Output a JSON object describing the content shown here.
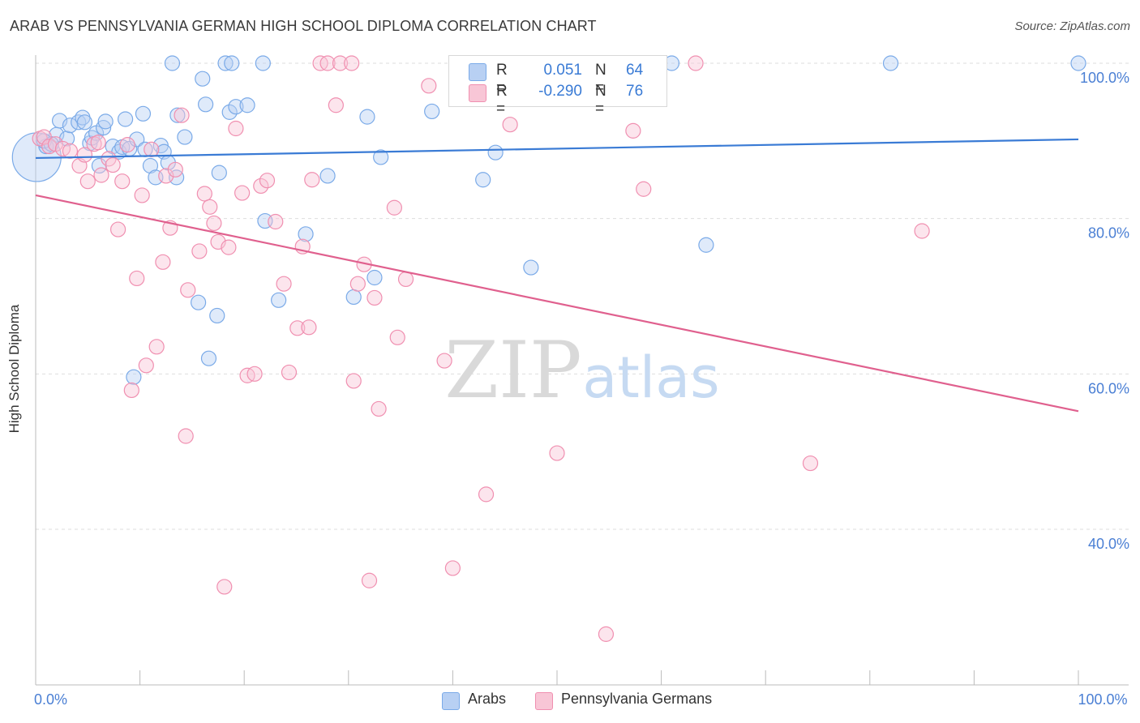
{
  "title": "ARAB VS PENNSYLVANIA GERMAN HIGH SCHOOL DIPLOMA CORRELATION CHART",
  "source": "Source: ZipAtlas.com",
  "watermark": {
    "zip": "ZIP",
    "atlas": "atlas"
  },
  "legend": {
    "r_label": "R =",
    "n_label": "N =",
    "rows": [
      {
        "name": "Arabs",
        "r": "0.051",
        "n": "64",
        "color": "#7aaae8",
        "fill": "#b8d0f3"
      },
      {
        "name": "Pennsylvania Germans",
        "r": "-0.290",
        "n": "76",
        "color": "#f08fb0",
        "fill": "#f8c6d6"
      }
    ]
  },
  "colors": {
    "blue": "#3a7bd5",
    "pink": "#e0608e",
    "tick_text": "#4a7fd4",
    "grid": "#dddddd"
  },
  "chart_data": {
    "type": "scatter",
    "title": "ARAB VS PENNSYLVANIA GERMAN HIGH SCHOOL DIPLOMA CORRELATION CHART",
    "xlabel": "",
    "ylabel": "High School Diploma",
    "xlim": [
      0,
      100
    ],
    "ylim": [
      20,
      102
    ],
    "x_tick_labels": [
      {
        "value": 0,
        "label": "0.0%"
      },
      {
        "value": 100,
        "label": "100.0%"
      }
    ],
    "y_tick_labels": [
      {
        "value": 100,
        "label": "100.0%"
      },
      {
        "value": 80,
        "label": "80.0%"
      },
      {
        "value": 60,
        "label": "60.0%"
      },
      {
        "value": 40,
        "label": "40.0%"
      }
    ],
    "grid": true,
    "legend_position": "top-center",
    "series": [
      {
        "name": "Arabs",
        "color": "#7aaae8",
        "trend": {
          "x": [
            0,
            100
          ],
          "y": [
            87.8,
            90.2
          ]
        },
        "points": [
          [
            0.1,
            87.9,
            30
          ],
          [
            1.0,
            89.3,
            9
          ],
          [
            2.0,
            90.8,
            9
          ],
          [
            2.3,
            92.6,
            9
          ],
          [
            3.0,
            90.3,
            9
          ],
          [
            3.3,
            92.0,
            9
          ],
          [
            4.1,
            92.4,
            9
          ],
          [
            4.5,
            93.0,
            9
          ],
          [
            4.7,
            92.4,
            9
          ],
          [
            5.2,
            89.7,
            9
          ],
          [
            5.4,
            90.4,
            9
          ],
          [
            5.8,
            91.0,
            9
          ],
          [
            6.1,
            86.8,
            9
          ],
          [
            6.5,
            91.7,
            9
          ],
          [
            6.7,
            92.5,
            9
          ],
          [
            7.4,
            89.3,
            9
          ],
          [
            8.0,
            88.6,
            9
          ],
          [
            8.3,
            89.2,
            9
          ],
          [
            8.6,
            92.8,
            9
          ],
          [
            9.0,
            89.0,
            9
          ],
          [
            9.7,
            90.2,
            9
          ],
          [
            10.3,
            93.5,
            9
          ],
          [
            10.5,
            88.9,
            9
          ],
          [
            11.0,
            86.8,
            9
          ],
          [
            11.5,
            85.3,
            9
          ],
          [
            12.0,
            89.4,
            9
          ],
          [
            12.3,
            88.6,
            9
          ],
          [
            12.7,
            87.2,
            9
          ],
          [
            13.1,
            100.0,
            9
          ],
          [
            13.5,
            85.3,
            9
          ],
          [
            13.6,
            93.3,
            9
          ],
          [
            14.3,
            90.5,
            9
          ],
          [
            15.6,
            69.2,
            9
          ],
          [
            16.0,
            98.0,
            9
          ],
          [
            16.3,
            94.7,
            9
          ],
          [
            16.6,
            62.0,
            9
          ],
          [
            17.4,
            67.5,
            9
          ],
          [
            17.6,
            85.9,
            9
          ],
          [
            18.2,
            100.0,
            9
          ],
          [
            18.6,
            93.7,
            9
          ],
          [
            18.8,
            100.0,
            9
          ],
          [
            19.2,
            94.4,
            9
          ],
          [
            20.3,
            94.6,
            9
          ],
          [
            21.8,
            100.0,
            9
          ],
          [
            22.0,
            79.7,
            9
          ],
          [
            23.3,
            69.5,
            9
          ],
          [
            25.9,
            78.0,
            9
          ],
          [
            28.0,
            85.5,
            9
          ],
          [
            30.5,
            69.9,
            9
          ],
          [
            31.8,
            93.1,
            9
          ],
          [
            32.5,
            72.4,
            9
          ],
          [
            33.1,
            87.9,
            9
          ],
          [
            38.0,
            93.8,
            9
          ],
          [
            42.9,
            85.0,
            9
          ],
          [
            44.1,
            88.5,
            9
          ],
          [
            46.8,
            100.0,
            9
          ],
          [
            47.5,
            73.7,
            9
          ],
          [
            61.0,
            100.0,
            9
          ],
          [
            64.3,
            76.6,
            9
          ],
          [
            82.0,
            100.0,
            9
          ],
          [
            100.0,
            100.0,
            9
          ],
          [
            9.4,
            59.6,
            9
          ],
          [
            0.8,
            90.0,
            9
          ],
          [
            1.5,
            89.6,
            9
          ]
        ]
      },
      {
        "name": "Pennsylvania Germans",
        "color": "#f08fb0",
        "trend": {
          "x": [
            0,
            100
          ],
          "y": [
            83.0,
            55.2
          ]
        },
        "points": [
          [
            0.4,
            90.3,
            9
          ],
          [
            0.8,
            90.5,
            9
          ],
          [
            1.3,
            89.3,
            9
          ],
          [
            1.9,
            89.6,
            9
          ],
          [
            2.6,
            89.0,
            9
          ],
          [
            3.3,
            88.7,
            9
          ],
          [
            4.2,
            86.8,
            9
          ],
          [
            4.7,
            88.2,
            9
          ],
          [
            5.0,
            84.8,
            9
          ],
          [
            5.6,
            89.6,
            9
          ],
          [
            6.0,
            89.8,
            9
          ],
          [
            6.3,
            85.6,
            9
          ],
          [
            7.0,
            87.7,
            9
          ],
          [
            7.4,
            86.9,
            9
          ],
          [
            7.9,
            78.6,
            9
          ],
          [
            8.3,
            84.8,
            9
          ],
          [
            8.8,
            89.5,
            9
          ],
          [
            9.2,
            57.9,
            9
          ],
          [
            9.7,
            72.3,
            9
          ],
          [
            10.2,
            83.0,
            9
          ],
          [
            10.6,
            61.1,
            9
          ],
          [
            11.1,
            88.9,
            9
          ],
          [
            11.6,
            63.5,
            9
          ],
          [
            12.2,
            74.4,
            9
          ],
          [
            12.5,
            85.5,
            9
          ],
          [
            12.9,
            78.8,
            9
          ],
          [
            13.4,
            86.3,
            9
          ],
          [
            14.0,
            93.3,
            9
          ],
          [
            14.4,
            52.0,
            9
          ],
          [
            14.6,
            70.8,
            9
          ],
          [
            15.7,
            75.8,
            9
          ],
          [
            16.2,
            83.2,
            9
          ],
          [
            16.7,
            81.5,
            9
          ],
          [
            17.1,
            79.4,
            9
          ],
          [
            17.5,
            77.0,
            9
          ],
          [
            18.1,
            32.6,
            9
          ],
          [
            18.5,
            76.3,
            9
          ],
          [
            19.2,
            91.6,
            9
          ],
          [
            19.8,
            83.3,
            9
          ],
          [
            20.3,
            59.8,
            9
          ],
          [
            21.0,
            60.0,
            9
          ],
          [
            21.6,
            84.2,
            9
          ],
          [
            22.2,
            84.9,
            9
          ],
          [
            23.0,
            79.6,
            9
          ],
          [
            23.8,
            71.6,
            9
          ],
          [
            24.3,
            60.2,
            9
          ],
          [
            25.1,
            65.9,
            9
          ],
          [
            25.6,
            76.4,
            9
          ],
          [
            26.2,
            66.0,
            9
          ],
          [
            26.5,
            85.0,
            9
          ],
          [
            27.3,
            100.0,
            9
          ],
          [
            28.0,
            100.0,
            9
          ],
          [
            28.8,
            94.6,
            9
          ],
          [
            29.2,
            100.0,
            9
          ],
          [
            30.3,
            100.0,
            9
          ],
          [
            30.5,
            59.1,
            9
          ],
          [
            30.9,
            71.6,
            9
          ],
          [
            31.5,
            74.1,
            9
          ],
          [
            32.0,
            33.4,
            9
          ],
          [
            32.5,
            69.8,
            9
          ],
          [
            32.9,
            55.5,
            9
          ],
          [
            34.4,
            81.4,
            9
          ],
          [
            34.7,
            64.7,
            9
          ],
          [
            35.5,
            72.2,
            9
          ],
          [
            37.7,
            97.1,
            9
          ],
          [
            39.2,
            61.7,
            9
          ],
          [
            40.0,
            35.0,
            9
          ],
          [
            43.2,
            44.5,
            9
          ],
          [
            45.5,
            92.1,
            9
          ],
          [
            50.0,
            49.8,
            9
          ],
          [
            54.7,
            26.5,
            9
          ],
          [
            57.3,
            91.3,
            9
          ],
          [
            58.3,
            83.8,
            9
          ],
          [
            63.3,
            100.0,
            9
          ],
          [
            74.3,
            48.5,
            9
          ],
          [
            85.0,
            78.4,
            9
          ]
        ]
      }
    ]
  }
}
